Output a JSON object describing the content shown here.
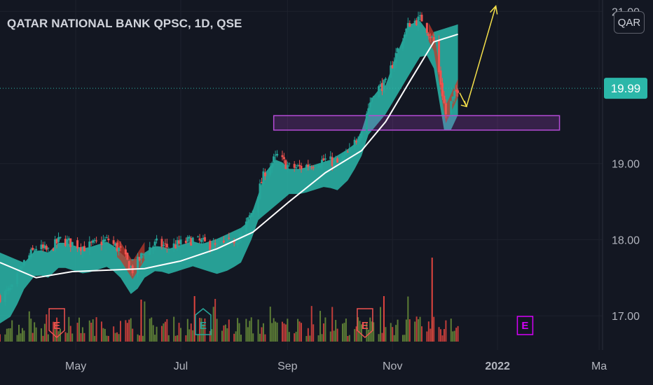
{
  "header": {
    "title": "QATAR NATIONAL BANK QPSC, 1D, QSE",
    "currency": "QAR"
  },
  "chart_data": {
    "type": "candlestick",
    "symbol": "QATAR NATIONAL BANK QPSC",
    "interval": "1D",
    "exchange": "QSE",
    "x_ticks": [
      "May",
      "Jul",
      "Sep",
      "Nov",
      "2022",
      "Ma"
    ],
    "y_ticks": [
      17.0,
      18.0,
      19.0,
      21.0
    ],
    "ylim": [
      16.55,
      21.15
    ],
    "xlim": [
      "2021-03-18",
      "2022-03-03"
    ],
    "last_price": 19.99,
    "last_price_label": "19.99",
    "colors": {
      "up": "#26a69a",
      "down": "#ef5350",
      "cloud": "#2bb7a9",
      "cloud_bear": "#c0392b",
      "ma": "#ffffff",
      "zone": "#b54bd6",
      "arrow": "#f5e04a",
      "price_line": "#2bb7a9",
      "earnings_red": "#ef5350",
      "earnings_teal": "#26a69a",
      "earnings_magenta": "#d500f9",
      "volume_up": "#6a8f3a",
      "volume_down": "#e0443e"
    },
    "price_path": [
      {
        "d": "2021-03-18",
        "p": 17.25
      },
      {
        "d": "2021-03-25",
        "p": 17.35
      },
      {
        "d": "2021-04-01",
        "p": 17.7
      },
      {
        "d": "2021-04-08",
        "p": 17.9
      },
      {
        "d": "2021-04-15",
        "p": 17.85
      },
      {
        "d": "2021-04-22",
        "p": 18.0
      },
      {
        "d": "2021-04-29",
        "p": 17.95
      },
      {
        "d": "2021-05-06",
        "p": 17.9
      },
      {
        "d": "2021-05-13",
        "p": 17.95
      },
      {
        "d": "2021-05-20",
        "p": 18.0
      },
      {
        "d": "2021-05-27",
        "p": 17.85
      },
      {
        "d": "2021-06-03",
        "p": 17.6
      },
      {
        "d": "2021-06-10",
        "p": 17.85
      },
      {
        "d": "2021-06-17",
        "p": 17.95
      },
      {
        "d": "2021-06-24",
        "p": 17.9
      },
      {
        "d": "2021-07-01",
        "p": 17.95
      },
      {
        "d": "2021-07-08",
        "p": 18.0
      },
      {
        "d": "2021-07-15",
        "p": 17.95
      },
      {
        "d": "2021-07-22",
        "p": 17.9
      },
      {
        "d": "2021-07-29",
        "p": 17.95
      },
      {
        "d": "2021-08-05",
        "p": 18.05
      },
      {
        "d": "2021-08-12",
        "p": 18.4
      },
      {
        "d": "2021-08-19",
        "p": 18.9
      },
      {
        "d": "2021-08-26",
        "p": 19.1
      },
      {
        "d": "2021-09-02",
        "p": 18.95
      },
      {
        "d": "2021-09-09",
        "p": 18.95
      },
      {
        "d": "2021-09-16",
        "p": 19.0
      },
      {
        "d": "2021-09-23",
        "p": 19.05
      },
      {
        "d": "2021-09-30",
        "p": 19.0
      },
      {
        "d": "2021-10-07",
        "p": 19.15
      },
      {
        "d": "2021-10-14",
        "p": 19.45
      },
      {
        "d": "2021-10-21",
        "p": 19.95
      },
      {
        "d": "2021-10-28",
        "p": 20.05
      },
      {
        "d": "2021-11-04",
        "p": 20.5
      },
      {
        "d": "2021-11-11",
        "p": 20.85
      },
      {
        "d": "2021-11-18",
        "p": 20.9
      },
      {
        "d": "2021-11-25",
        "p": 20.6
      },
      {
        "d": "2021-12-02",
        "p": 19.65
      },
      {
        "d": "2021-12-09",
        "p": 19.99
      }
    ],
    "moving_average": [
      {
        "d": "2021-03-18",
        "p": 17.7
      },
      {
        "d": "2021-04-08",
        "p": 17.5
      },
      {
        "d": "2021-04-29",
        "p": 17.58
      },
      {
        "d": "2021-05-20",
        "p": 17.6
      },
      {
        "d": "2021-06-10",
        "p": 17.62
      },
      {
        "d": "2021-07-01",
        "p": 17.72
      },
      {
        "d": "2021-07-22",
        "p": 17.88
      },
      {
        "d": "2021-08-12",
        "p": 18.1
      },
      {
        "d": "2021-09-02",
        "p": 18.5
      },
      {
        "d": "2021-09-23",
        "p": 18.88
      },
      {
        "d": "2021-10-14",
        "p": 19.17
      },
      {
        "d": "2021-10-28",
        "p": 19.55
      },
      {
        "d": "2021-11-11",
        "p": 20.08
      },
      {
        "d": "2021-11-25",
        "p": 20.6
      },
      {
        "d": "2021-12-09",
        "p": 20.7
      }
    ],
    "support_zone": {
      "start": "2021-08-24",
      "end": "2022-02-06",
      "low": 19.44,
      "high": 19.63
    },
    "projection_arrows": [
      [
        {
          "d": "2021-12-10",
          "p": 19.93
        },
        {
          "d": "2021-12-14",
          "p": 19.75
        }
      ],
      [
        {
          "d": "2021-12-14",
          "p": 19.75
        },
        {
          "d": "2021-12-31",
          "p": 21.07
        }
      ]
    ],
    "earnings": [
      {
        "d": "2021-04-20",
        "label": "E"
      },
      {
        "d": "2021-07-14",
        "label": "E"
      },
      {
        "d": "2021-10-16",
        "label": "E"
      },
      {
        "d": "2022-01-17",
        "label": "E"
      }
    ]
  }
}
